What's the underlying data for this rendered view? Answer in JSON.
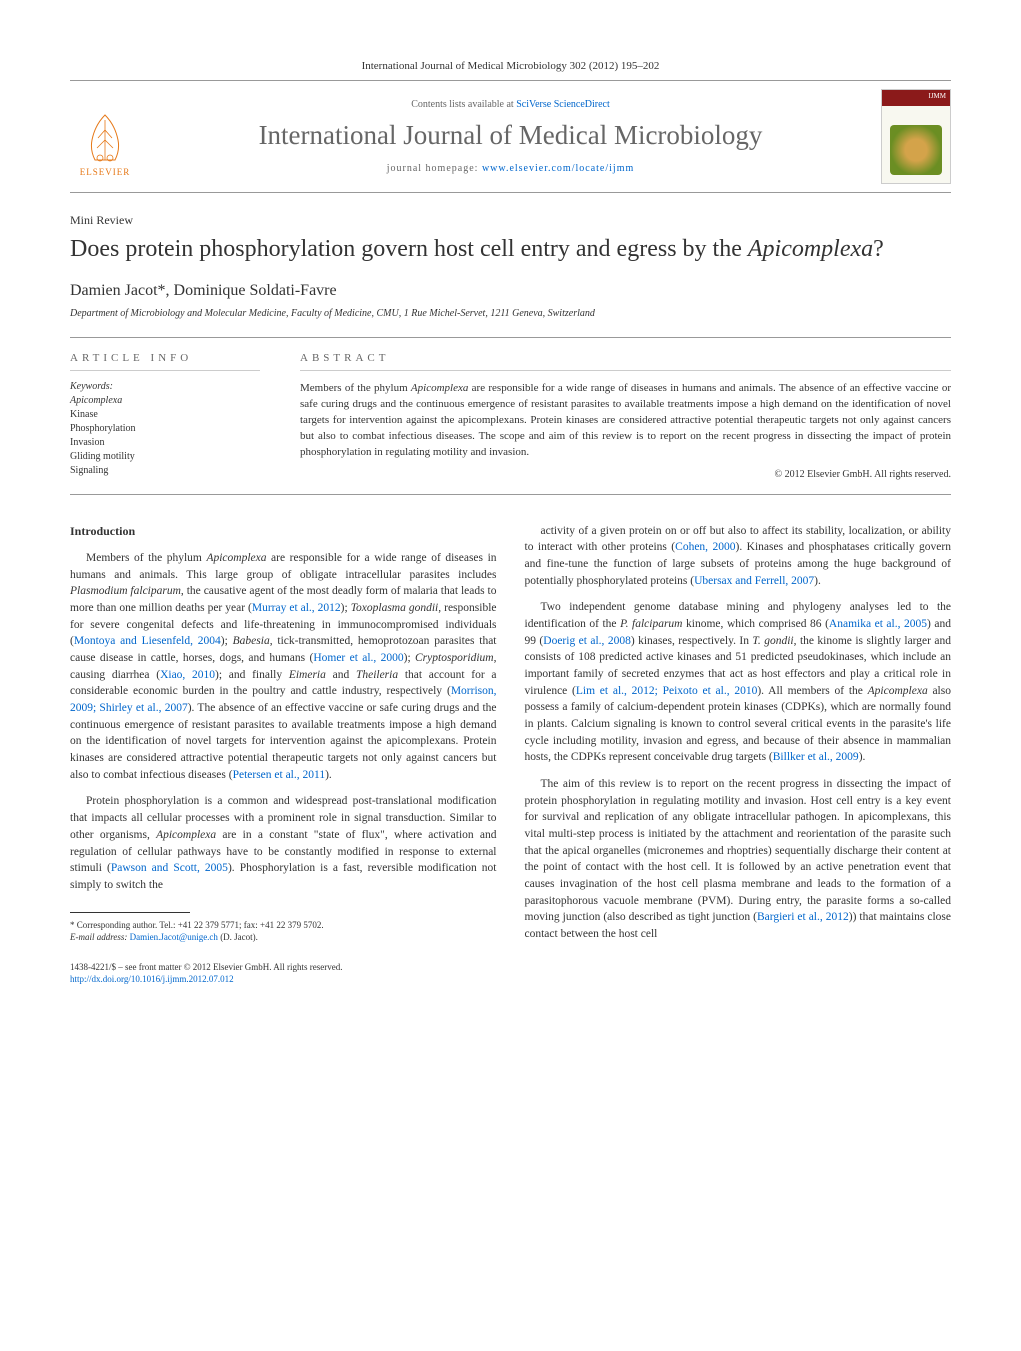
{
  "top_citation": "International Journal of Medical Microbiology 302 (2012) 195–202",
  "header": {
    "contents_prefix": "Contents lists available at ",
    "contents_link": "SciVerse ScienceDirect",
    "journal_name": "International Journal of Medical Microbiology",
    "homepage_prefix": "journal homepage: ",
    "homepage_link": "www.elsevier.com/locate/ijmm",
    "publisher": "ELSEVIER",
    "cover_label": "IJMM"
  },
  "article": {
    "type": "Mini Review",
    "title_pre": "Does protein phosphorylation govern host cell entry and egress by the ",
    "title_italic": "Apicomplexa",
    "title_post": "?",
    "authors": "Damien Jacot*, Dominique Soldati-Favre",
    "affiliation": "Department of Microbiology and Molecular Medicine, Faculty of Medicine, CMU, 1 Rue Michel-Servet, 1211 Geneva, Switzerland"
  },
  "info": {
    "header": "ARTICLE INFO",
    "keywords_label": "Keywords:",
    "keywords": [
      "Apicomplexa",
      "Kinase",
      "Phosphorylation",
      "Invasion",
      "Gliding motility",
      "Signaling"
    ]
  },
  "abstract": {
    "header": "ABSTRACT",
    "text_parts": [
      {
        "t": "Members of the phylum ",
        "i": false
      },
      {
        "t": "Apicomplexa",
        "i": true
      },
      {
        "t": " are responsible for a wide range of diseases in humans and animals. The absence of an effective vaccine or safe curing drugs and the continuous emergence of resistant parasites to available treatments impose a high demand on the identification of novel targets for intervention against the apicomplexans. Protein kinases are considered attractive potential therapeutic targets not only against cancers but also to combat infectious diseases. The scope and aim of this review is to report on the recent progress in dissecting the impact of protein phosphorylation in regulating motility and invasion.",
        "i": false
      }
    ],
    "copyright": "© 2012 Elsevier GmbH. All rights reserved."
  },
  "body": {
    "intro_head": "Introduction",
    "left_paragraphs": [
      [
        {
          "t": "Members of the phylum "
        },
        {
          "t": "Apicomplexa",
          "i": true
        },
        {
          "t": " are responsible for a wide range of diseases in humans and animals. This large group of obligate intracellular parasites includes "
        },
        {
          "t": "Plasmodium falciparum",
          "i": true
        },
        {
          "t": ", the causative agent of the most deadly form of malaria that leads to more than one million deaths per year ("
        },
        {
          "t": "Murray et al., 2012",
          "c": true
        },
        {
          "t": "); "
        },
        {
          "t": "Toxoplasma gondii",
          "i": true
        },
        {
          "t": ", responsible for severe congenital defects and life-threatening in immunocompromised individuals ("
        },
        {
          "t": "Montoya and Liesenfeld, 2004",
          "c": true
        },
        {
          "t": "); "
        },
        {
          "t": "Babesia",
          "i": true
        },
        {
          "t": ", tick-transmitted, hemoprotozoan parasites that cause disease in cattle, horses, dogs, and humans ("
        },
        {
          "t": "Homer et al., 2000",
          "c": true
        },
        {
          "t": "); "
        },
        {
          "t": "Cryptosporidium",
          "i": true
        },
        {
          "t": ", causing diarrhea ("
        },
        {
          "t": "Xiao, 2010",
          "c": true
        },
        {
          "t": "); and finally "
        },
        {
          "t": "Eimeria",
          "i": true
        },
        {
          "t": " and "
        },
        {
          "t": "Theileria",
          "i": true
        },
        {
          "t": " that account for a considerable economic burden in the poultry and cattle industry, respectively ("
        },
        {
          "t": "Morrison, 2009; Shirley et al., 2007",
          "c": true
        },
        {
          "t": "). The absence of an effective vaccine or safe curing drugs and the continuous emergence of resistant parasites to available treatments impose a high demand on the identification of novel targets for intervention against the apicomplexans. Protein kinases are considered attractive potential therapeutic targets not only against cancers but also to combat infectious diseases ("
        },
        {
          "t": "Petersen et al., 2011",
          "c": true
        },
        {
          "t": ")."
        }
      ],
      [
        {
          "t": "Protein phosphorylation is a common and widespread post-translational modification that impacts all cellular processes with a prominent role in signal transduction. Similar to other organisms, "
        },
        {
          "t": "Apicomplexa",
          "i": true
        },
        {
          "t": " are in a constant \"state of flux\", where activation and regulation of cellular pathways have to be constantly modified in response to external stimuli ("
        },
        {
          "t": "Pawson and Scott, 2005",
          "c": true
        },
        {
          "t": "). Phosphorylation is a fast, reversible modification not simply to switch the"
        }
      ]
    ],
    "right_paragraphs": [
      [
        {
          "t": "activity of a given protein on or off but also to affect its stability, localization, or ability to interact with other proteins ("
        },
        {
          "t": "Cohen, 2000",
          "c": true
        },
        {
          "t": "). Kinases and phosphatases critically govern and fine-tune the function of large subsets of proteins among the huge background of potentially phosphorylated proteins ("
        },
        {
          "t": "Ubersax and Ferrell, 2007",
          "c": true
        },
        {
          "t": ")."
        }
      ],
      [
        {
          "t": "Two independent genome database mining and phylogeny analyses led to the identification of the "
        },
        {
          "t": "P. falciparum",
          "i": true
        },
        {
          "t": " kinome, which comprised 86 ("
        },
        {
          "t": "Anamika et al., 2005",
          "c": true
        },
        {
          "t": ") and 99 ("
        },
        {
          "t": "Doerig et al., 2008",
          "c": true
        },
        {
          "t": ") kinases, respectively. In "
        },
        {
          "t": "T. gondii",
          "i": true
        },
        {
          "t": ", the kinome is slightly larger and consists of 108 predicted active kinases and 51 predicted pseudokinases, which include an important family of secreted enzymes that act as host effectors and play a critical role in virulence ("
        },
        {
          "t": "Lim et al., 2012; Peixoto et al., 2010",
          "c": true
        },
        {
          "t": "). All members of the "
        },
        {
          "t": "Apicomplexa",
          "i": true
        },
        {
          "t": " also possess a family of calcium-dependent protein kinases (CDPKs), which are normally found in plants. Calcium signaling is known to control several critical events in the parasite's life cycle including motility, invasion and egress, and because of their absence in mammalian hosts, the CDPKs represent conceivable drug targets ("
        },
        {
          "t": "Billker et al., 2009",
          "c": true
        },
        {
          "t": ")."
        }
      ],
      [
        {
          "t": "The aim of this review is to report on the recent progress in dissecting the impact of protein phosphorylation in regulating motility and invasion. Host cell entry is a key event for survival and replication of any obligate intracellular pathogen. In apicomplexans, this vital multi-step process is initiated by the attachment and reorientation of the parasite such that the apical organelles (micronemes and rhoptries) sequentially discharge their content at the point of contact with the host cell. It is followed by an active penetration event that causes invagination of the host cell plasma membrane and leads to the formation of a parasitophorous vacuole membrane (PVM). During entry, the parasite forms a so-called moving junction (also described as tight junction ("
        },
        {
          "t": "Bargieri et al., 2012",
          "c": true
        },
        {
          "t": ")) that maintains close contact between the host cell"
        }
      ]
    ]
  },
  "footnote": {
    "corr": "* Corresponding author. Tel.: +41 22 379 5771; fax: +41 22 379 5702.",
    "email_label": "E-mail address: ",
    "email": "Damien.Jacot@unige.ch",
    "email_suffix": " (D. Jacot)."
  },
  "footer": {
    "line1": "1438-4221/$ – see front matter © 2012 Elsevier GmbH. All rights reserved.",
    "doi": "http://dx.doi.org/10.1016/j.ijmm.2012.07.012"
  },
  "colors": {
    "link": "#0066cc",
    "elsevier_orange": "#e67817",
    "rule": "#999999",
    "text": "#333333"
  }
}
